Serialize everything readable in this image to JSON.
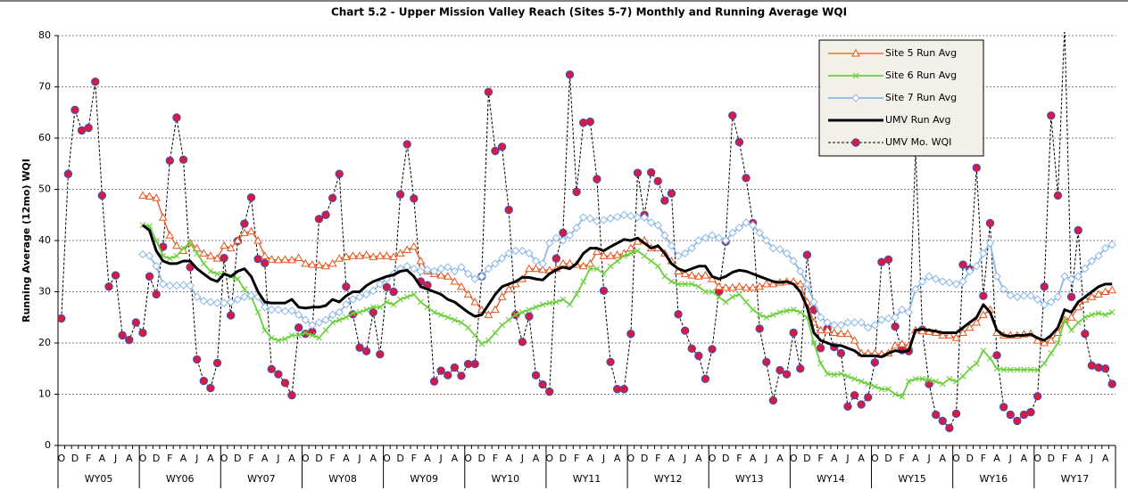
{
  "chart_data": {
    "type": "line",
    "title": "Chart 5.2 - Upper Mission Valley Reach (Sites 5-7) Monthly and Running Average WQI",
    "y_label": "Running Average (12mo) WQI",
    "ylim": [
      0,
      80
    ],
    "yticks": [
      0,
      10,
      20,
      30,
      40,
      50,
      60,
      70,
      80
    ],
    "grid": true,
    "legend": "upper right",
    "categories": [
      "O",
      null,
      "D",
      null,
      "F",
      null,
      "A",
      null,
      "J",
      null,
      "A",
      null,
      "O",
      null,
      "D",
      null,
      "F",
      null,
      "A",
      null,
      "J",
      null,
      "A",
      null,
      "O",
      null,
      "D",
      null,
      "F",
      null,
      "A",
      null,
      "J",
      null,
      "A",
      null,
      "O",
      null,
      "D",
      null,
      "F",
      null,
      "A",
      null,
      "J",
      null,
      "A",
      null,
      "O",
      null,
      "D",
      null,
      "F",
      null,
      "A",
      null,
      "J",
      null,
      "A",
      null,
      "O",
      null,
      "D",
      null,
      "F",
      null,
      "A",
      null,
      "J",
      null,
      "A",
      null,
      "O",
      null,
      "D",
      null,
      "F",
      null,
      "A",
      null,
      "J",
      null,
      "A",
      null,
      "O",
      null,
      "D",
      null,
      "F",
      null,
      "A",
      null,
      "J",
      null,
      "A",
      null,
      "O",
      null,
      "D",
      null,
      "F",
      null,
      "A",
      null,
      "J",
      null,
      "A",
      null,
      "O",
      null,
      "D",
      null,
      "F",
      null,
      "A",
      null,
      "J",
      null,
      "A",
      null,
      "O",
      null,
      "D",
      null,
      "F",
      null,
      "A",
      null,
      "J",
      null,
      "A",
      null,
      "O",
      null,
      "D",
      null,
      "F",
      null,
      "A",
      null,
      "J",
      null,
      "A",
      null,
      "O",
      null,
      "D",
      null,
      "F",
      null,
      "A",
      null,
      "J",
      null,
      "A",
      null
    ],
    "groups": [
      "WY05",
      "WY06",
      "WY07",
      "WY08",
      "WY09",
      "WY10",
      "WY11",
      "WY12",
      "WY13",
      "WY14",
      "WY15",
      "WY16",
      "WY17"
    ],
    "series": [
      {
        "name": "Site 5 Run Avg",
        "color": "#e8541a",
        "marker": "triangle",
        "width": 1.3,
        "values": [
          null,
          null,
          null,
          null,
          null,
          null,
          null,
          null,
          null,
          null,
          null,
          null,
          48.8,
          48.6,
          48.3,
          44.5,
          41,
          39,
          38,
          39.5,
          38.5,
          37.5,
          37,
          36.5,
          39,
          38.5,
          40,
          41.5,
          41.8,
          40,
          37,
          36.3,
          36.2,
          36.3,
          36.2,
          36.6,
          35.5,
          35.3,
          35.2,
          35,
          35.5,
          36.5,
          36.8,
          37,
          37,
          37.2,
          36.8,
          37,
          37,
          36.8,
          37.5,
          38.2,
          38.8,
          36,
          34,
          33.5,
          33.2,
          33,
          32,
          31,
          29.5,
          28,
          26.5,
          25.5,
          26.5,
          29,
          30.5,
          31.5,
          32.5,
          34.5,
          34.5,
          34.3,
          34.2,
          34.5,
          35.5,
          35.5,
          35.3,
          35,
          35.5,
          37.8,
          37,
          37,
          37.2,
          37.5,
          38.5,
          39.8,
          40,
          38.5,
          38.5,
          37.5,
          36,
          34,
          33.5,
          33.2,
          33,
          33.2,
          32.5,
          31,
          30.8,
          30.8,
          31,
          30.8,
          30.8,
          31,
          31.5,
          31.5,
          31.8,
          32,
          32,
          31.5,
          28,
          24,
          22.5,
          22.5,
          22,
          21.8,
          21.8,
          20.5,
          18,
          18,
          18,
          17.8,
          18,
          19.5,
          19.8,
          19.5,
          22.5,
          22.3,
          22.2,
          22,
          21.5,
          21.5,
          21,
          22,
          23,
          24,
          25.5,
          26.5,
          22,
          21.5,
          21.5,
          21.5,
          21.7,
          21.8,
          20.5,
          20,
          20.5,
          22,
          24.5,
          25,
          27,
          28.5,
          29,
          29.5,
          30,
          30.3
        ]
      },
      {
        "name": "Site 6 Run Avg",
        "color": "#6ccf3c",
        "marker": "x",
        "width": 1.8,
        "values": [
          null,
          null,
          null,
          null,
          null,
          null,
          null,
          null,
          null,
          null,
          null,
          null,
          43,
          42.8,
          40,
          37,
          36.5,
          37,
          38.5,
          39.5,
          37.5,
          35.5,
          34,
          33.5,
          33.5,
          33,
          32.5,
          30.5,
          29,
          26,
          22.5,
          21,
          20.5,
          20.8,
          21.5,
          21.5,
          22,
          21.5,
          21,
          22.5,
          24,
          24.5,
          25,
          25.8,
          26,
          26.5,
          27,
          27,
          28,
          27.5,
          28.5,
          29,
          29.5,
          28,
          27,
          26,
          25.5,
          25,
          24.5,
          24,
          23,
          21.5,
          19.8,
          20.5,
          22,
          23.5,
          24.5,
          25.5,
          26,
          26.5,
          27,
          27.5,
          27.8,
          28,
          28.5,
          27.5,
          29.5,
          32,
          34.5,
          34.5,
          33.5,
          35,
          36,
          37,
          37.5,
          38,
          37,
          36,
          35,
          33,
          32,
          31.5,
          31.5,
          31.5,
          31,
          30,
          30,
          29,
          28,
          29,
          29.5,
          28,
          26.5,
          25.5,
          25,
          25.5,
          26,
          26.3,
          26.5,
          26,
          25,
          20,
          16,
          14,
          13.8,
          14,
          13.5,
          13,
          12.5,
          12,
          11.5,
          11,
          11,
          10,
          9.5,
          12.5,
          13,
          13,
          12.8,
          12.5,
          12,
          13,
          12.5,
          13.5,
          15,
          16,
          18.5,
          17,
          15,
          14.8,
          14.8,
          14.8,
          14.8,
          14.8,
          14.7,
          16,
          18,
          20,
          24.5,
          22.5,
          24,
          25,
          25.5,
          25.8,
          25.5,
          26
        ]
      },
      {
        "name": "Site 7 Run Avg",
        "color": "#8db8e6",
        "marker": "diamond",
        "width": 1.8,
        "values": [
          null,
          null,
          null,
          null,
          null,
          null,
          null,
          null,
          null,
          null,
          null,
          null,
          37.3,
          37,
          35,
          31.5,
          31.2,
          31.2,
          31.3,
          31.2,
          29,
          28.2,
          28,
          27.8,
          27.8,
          28,
          28.5,
          29,
          29.3,
          29,
          27,
          26.5,
          26.5,
          26.2,
          26.3,
          25.5,
          24.5,
          23.5,
          24,
          24.5,
          25.5,
          26,
          27.5,
          28.5,
          29,
          29.5,
          30.2,
          31.5,
          32.5,
          33.5,
          34.5,
          35,
          34.5,
          34,
          34.3,
          34,
          34.5,
          34.8,
          34,
          34.8,
          33.5,
          32.5,
          33,
          34.5,
          35.5,
          36.5,
          37.5,
          38,
          38,
          37.5,
          36,
          35.5,
          39.5,
          40.5,
          40,
          41,
          42.5,
          44.5,
          44.3,
          43.8,
          44,
          44.3,
          44.6,
          45,
          44.8,
          44.5,
          44.5,
          43.5,
          43,
          41,
          39,
          37,
          37.5,
          38.5,
          40,
          40.5,
          41,
          40.5,
          40,
          41.5,
          42.5,
          43.5,
          43,
          41.5,
          40,
          38.5,
          38.3,
          37.5,
          36,
          34,
          31.5,
          28,
          25,
          24,
          23.5,
          23.5,
          24,
          24,
          24,
          23,
          23.5,
          24.5,
          24.8,
          25,
          26.5,
          26,
          30.5,
          32,
          33,
          32.5,
          32,
          31.8,
          31.5,
          32,
          34,
          35,
          37.5,
          39.5,
          33,
          30.5,
          29.3,
          29,
          29.2,
          29.2,
          28.5,
          27.5,
          28,
          29,
          33,
          32.5,
          33,
          34.5,
          36,
          37,
          38.5,
          39.2
        ]
      },
      {
        "name": "UMV Run Avg",
        "color": "#000000",
        "marker": "none",
        "width": 3,
        "values": [
          null,
          null,
          null,
          null,
          null,
          null,
          null,
          null,
          null,
          null,
          null,
          null,
          43,
          42,
          38,
          36,
          35.5,
          35.5,
          36,
          36,
          34.5,
          33.5,
          32.5,
          32,
          33.5,
          33,
          34,
          34.5,
          33,
          30,
          28,
          27.8,
          27.8,
          27.8,
          28.5,
          27,
          26.8,
          27,
          27,
          27.3,
          28.5,
          28,
          29.2,
          30,
          30,
          31.2,
          32,
          32.5,
          33,
          33.3,
          34,
          34.2,
          33,
          31,
          30.5,
          30,
          29.5,
          28.5,
          28,
          27,
          26,
          25.2,
          25.5,
          27.5,
          29.5,
          31,
          31.5,
          32,
          32.8,
          32.8,
          32.5,
          32.3,
          33.5,
          34.3,
          34.8,
          34.5,
          35.5,
          37.5,
          38.5,
          38.5,
          38,
          38.8,
          39.5,
          40.2,
          40,
          40.5,
          39.5,
          38.5,
          39,
          37.5,
          35.5,
          34.5,
          34,
          34.5,
          35,
          35,
          33,
          32.5,
          33,
          33.8,
          34.2,
          34,
          33.5,
          33,
          32.5,
          32,
          31.8,
          32,
          31.5,
          30,
          27,
          22,
          20.5,
          20,
          19.5,
          19.5,
          19,
          18.5,
          17.5,
          17.5,
          17.5,
          17.3,
          18,
          18.5,
          18.3,
          18.5,
          22.5,
          22.7,
          22.5,
          22.3,
          22,
          22,
          22,
          23,
          24,
          25,
          27.5,
          26,
          22.5,
          21.5,
          21.3,
          21.5,
          21.5,
          21.7,
          21,
          20.5,
          21.5,
          23,
          26.5,
          26,
          28,
          29,
          30,
          31,
          31.5,
          31.5
        ]
      },
      {
        "name": "UMV Mo. WQI",
        "color": "#000000",
        "marker": "circle",
        "marker_color": "#d81b3c",
        "marker_edge": "#3b4fc4",
        "dashed": true,
        "width": 1,
        "values": [
          24.8,
          53,
          65.5,
          61.5,
          62,
          71,
          48.8,
          31,
          33.2,
          21.5,
          20.6,
          24,
          22,
          33,
          29.5,
          38.8,
          55.6,
          64,
          55.8,
          34.8,
          16.8,
          12.6,
          11.2,
          16.1,
          36.6,
          25.4,
          39.9,
          43.3,
          48.4,
          36.4,
          35.6,
          14.9,
          13.9,
          12.2,
          9.8,
          23,
          21.8,
          22.2,
          44.2,
          45,
          48.3,
          53,
          31,
          25.6,
          19.1,
          18.4,
          26,
          17.8,
          30.9,
          30,
          49,
          58.8,
          48.2,
          32,
          31.3,
          12.5,
          14.6,
          13.7,
          15.2,
          13.6,
          15.9,
          15.9,
          33,
          69,
          57.5,
          58.3,
          46,
          25.5,
          20.2,
          25.2,
          13.7,
          11.9,
          10.5,
          36.5,
          41.5,
          72.4,
          49.5,
          63,
          63.2,
          52,
          30.2,
          16.3,
          11,
          11,
          21.8,
          53.2,
          45,
          53.3,
          51.6,
          47.8,
          49.2,
          25.6,
          22.4,
          18.9,
          17.5,
          13,
          18.8,
          30,
          39.8,
          64.4,
          59.2,
          52.2,
          43.4,
          22.8,
          16.3,
          8.8,
          14.7,
          13.9,
          22,
          15,
          37.2,
          26.5,
          19,
          22.8,
          19.2,
          18,
          7.6,
          9.8,
          8,
          9.4,
          16.2,
          35.8,
          36.3,
          23.2,
          18.6,
          18.4,
          58,
          22.6,
          12,
          6,
          4.8,
          3.4,
          6.2,
          35.3,
          34.4,
          54.2,
          29.2,
          43.4,
          17.6,
          7.5,
          6,
          4.8,
          6,
          6.5,
          9.6,
          31,
          64.4,
          48.8,
          82,
          29,
          42,
          21.8,
          15.6,
          15.2,
          15,
          12
        ]
      }
    ]
  }
}
